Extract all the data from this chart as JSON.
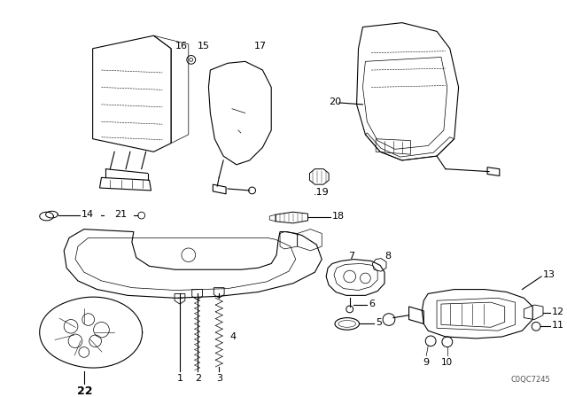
{
  "bg_color": "#ffffff",
  "line_color": "#000000",
  "fig_width": 6.4,
  "fig_height": 4.48,
  "dpi": 100,
  "watermark": "C0QC7245",
  "border_color": "#cccccc"
}
